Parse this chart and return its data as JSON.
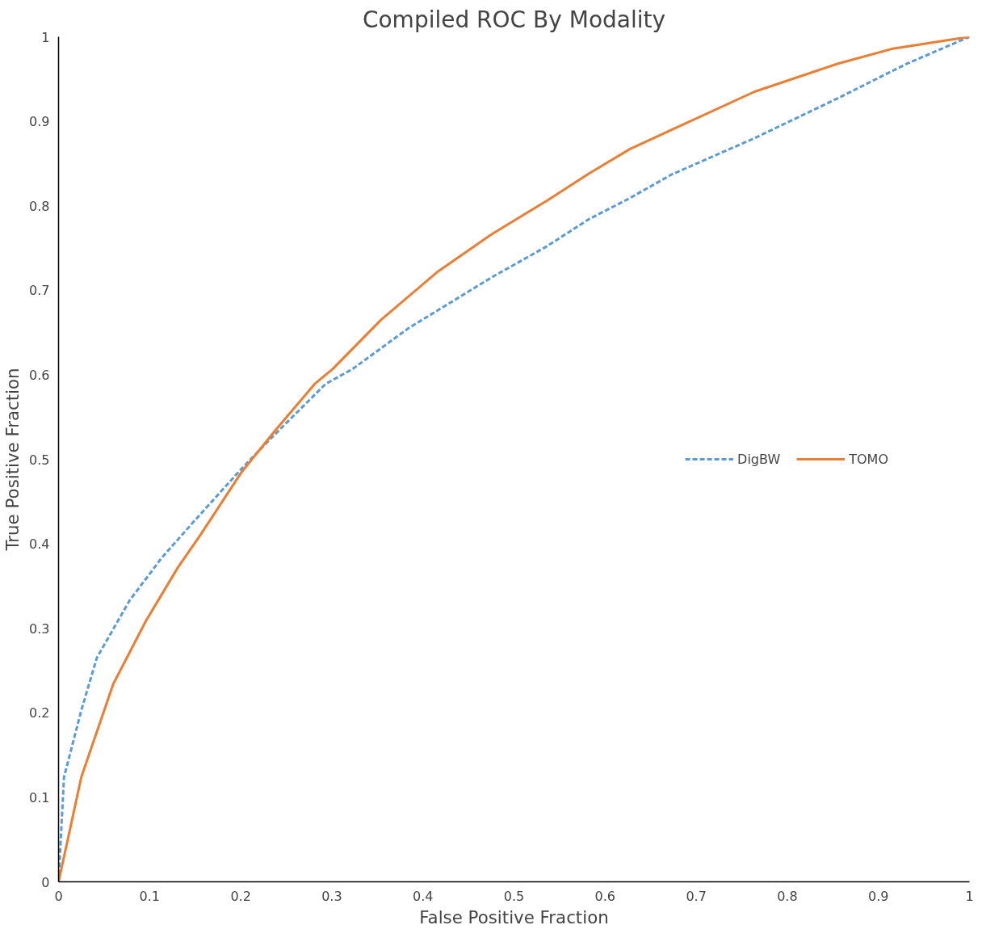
{
  "chart_data": {
    "type": "line",
    "title": "Compiled ROC By Modality",
    "xlabel": "False Positive Fraction",
    "ylabel": "True Positive Fraction",
    "xlim": [
      0,
      1
    ],
    "ylim": [
      0,
      1
    ],
    "xticks": [
      0,
      0.1,
      0.2,
      0.3,
      0.4,
      0.5,
      0.6,
      0.7,
      0.8,
      0.9,
      1
    ],
    "yticks": [
      0,
      0.1,
      0.2,
      0.3,
      0.4,
      0.5,
      0.6,
      0.7,
      0.8,
      0.9,
      1
    ],
    "grid": false,
    "legend": "right",
    "marker": "none",
    "series": [
      {
        "name": "DigBW",
        "color": "#5b9bd5",
        "line_style": "dashed",
        "x": [
          0,
          0.006,
          0.025,
          0.042,
          0.078,
          0.113,
          0.149,
          0.201,
          0.237,
          0.293,
          0.323,
          0.384,
          0.475,
          0.536,
          0.582,
          0.627,
          0.673,
          0.764,
          0.855,
          0.931,
          1
        ],
        "values": [
          0,
          0.124,
          0.203,
          0.265,
          0.333,
          0.383,
          0.427,
          0.489,
          0.529,
          0.589,
          0.607,
          0.655,
          0.715,
          0.752,
          0.784,
          0.809,
          0.837,
          0.88,
          0.927,
          0.968,
          1
        ]
      },
      {
        "name": "TOMO",
        "color": "#ed7d31",
        "line_style": "solid",
        "x": [
          0,
          0.025,
          0.06,
          0.096,
          0.131,
          0.156,
          0.201,
          0.237,
          0.281,
          0.301,
          0.354,
          0.415,
          0.475,
          0.536,
          0.582,
          0.627,
          0.673,
          0.764,
          0.855,
          0.916,
          1
        ],
        "values": [
          0,
          0.124,
          0.234,
          0.309,
          0.372,
          0.411,
          0.485,
          0.533,
          0.589,
          0.607,
          0.665,
          0.721,
          0.766,
          0.806,
          0.838,
          0.867,
          0.89,
          0.935,
          0.968,
          0.986,
          1
        ]
      }
    ]
  }
}
